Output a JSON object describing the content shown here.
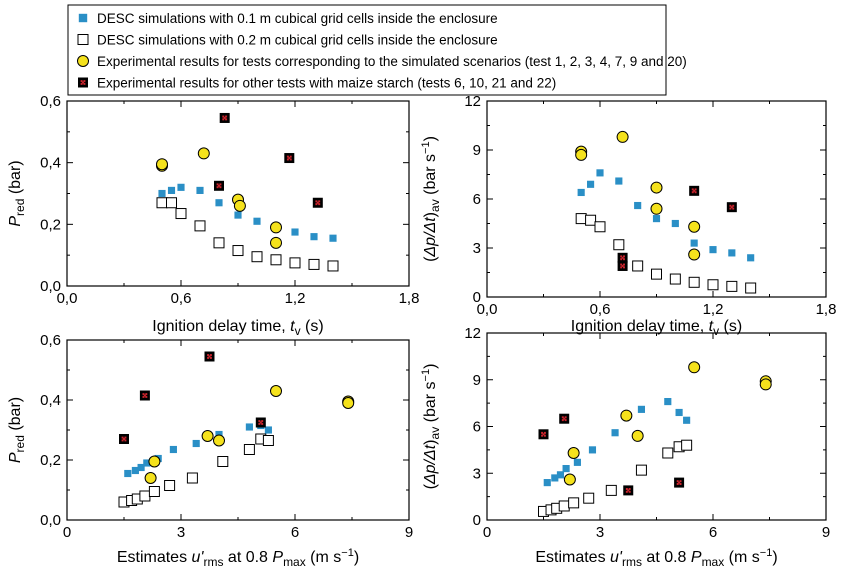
{
  "legend": [
    {
      "marker": "blue-square",
      "label": "DESC simulations with 0.1 m cubical grid cells inside the enclosure"
    },
    {
      "marker": "white-square",
      "label": "DESC simulations with 0.2 m cubical grid cells inside the enclosure"
    },
    {
      "marker": "yellow-circle",
      "label": "Experimental results for tests corresponding to the simulated scenarios (test 1, 2, 3, 4, 7, 9 and 20)"
    },
    {
      "marker": "red-square",
      "label": "Experimental results for other tests with maize starch (tests 6, 10, 21 and 22)"
    }
  ],
  "colors": {
    "blue": "#2a8fc6",
    "yellow": "#f5e21c",
    "red": "#c8232c",
    "black": "#000000",
    "white": "#ffffff"
  },
  "chart_data": [
    {
      "type": "scatter",
      "ylabel": "P_red (bar)",
      "xlabel": "Ignition delay time, t_v (s)",
      "xlim": [
        0,
        1.8
      ],
      "ylim": [
        0,
        0.6
      ],
      "xticks": [
        "0,0",
        "0,6",
        "1,2",
        "1,8"
      ],
      "yticks": [
        "0,0",
        "0,2",
        "0,4",
        "0,6"
      ],
      "series": [
        {
          "name": "DESC simulations with 0.1 m cubical grid cells inside the enclosure",
          "marker": "blue-square",
          "x": [
            0.5,
            0.55,
            0.6,
            0.7,
            0.8,
            0.9,
            1.0,
            1.1,
            1.2,
            1.3,
            1.4
          ],
          "y": [
            0.3,
            0.31,
            0.32,
            0.31,
            0.27,
            0.23,
            0.21,
            0.19,
            0.175,
            0.16,
            0.155
          ]
        },
        {
          "name": "DESC simulations with 0.2 m cubical grid cells inside the enclosure",
          "marker": "white-square",
          "x": [
            0.5,
            0.55,
            0.6,
            0.7,
            0.8,
            0.9,
            1.0,
            1.1,
            1.2,
            1.3,
            1.4
          ],
          "y": [
            0.27,
            0.27,
            0.235,
            0.195,
            0.14,
            0.115,
            0.095,
            0.085,
            0.075,
            0.07,
            0.065
          ]
        },
        {
          "name": "Experimental results for tests corresponding to the simulated scenarios (test 1, 2, 3, 4, 7, 9 and 20)",
          "marker": "yellow-circle",
          "x": [
            0.5,
            0.5,
            0.72,
            0.9,
            0.91,
            1.1,
            1.1
          ],
          "y": [
            0.39,
            0.395,
            0.43,
            0.28,
            0.26,
            0.19,
            0.14
          ]
        },
        {
          "name": "Experimental results for other tests with maize starch (tests 6, 10, 21 and 22)",
          "marker": "red-square",
          "x": [
            0.8,
            0.83,
            1.17,
            1.32
          ],
          "y": [
            0.325,
            0.545,
            0.415,
            0.27
          ]
        }
      ]
    },
    {
      "type": "scatter",
      "ylabel": "(Δp/Δt)av (bar s^-1)",
      "xlabel": "Ignition delay time, t_v (s)",
      "xlim": [
        0,
        1.8
      ],
      "ylim": [
        0,
        12
      ],
      "xticks": [
        "0,0",
        "0,6",
        "1,2",
        "1,8"
      ],
      "yticks": [
        "0",
        "3",
        "6",
        "9",
        "12"
      ],
      "series": [
        {
          "name": "DESC simulations with 0.1 m cubical grid cells inside the enclosure",
          "marker": "blue-square",
          "x": [
            0.5,
            0.55,
            0.6,
            0.7,
            0.8,
            0.9,
            1.0,
            1.1,
            1.2,
            1.3,
            1.4
          ],
          "y": [
            6.4,
            6.9,
            7.6,
            7.1,
            5.6,
            4.8,
            4.5,
            3.3,
            2.9,
            2.7,
            2.4
          ]
        },
        {
          "name": "DESC simulations with 0.2 m cubical grid cells inside the enclosure",
          "marker": "white-square",
          "x": [
            0.5,
            0.55,
            0.6,
            0.7,
            0.8,
            0.9,
            1.0,
            1.1,
            1.2,
            1.3,
            1.4
          ],
          "y": [
            4.8,
            4.7,
            4.3,
            3.2,
            1.9,
            1.4,
            1.1,
            0.9,
            0.75,
            0.65,
            0.55
          ]
        },
        {
          "name": "Experimental results for tests corresponding to the simulated scenarios (test 1, 2, 3, 4, 7, 9 and 20)",
          "marker": "yellow-circle",
          "x": [
            0.5,
            0.5,
            0.72,
            0.9,
            0.9,
            1.1,
            1.1
          ],
          "y": [
            8.9,
            8.7,
            9.8,
            6.7,
            5.4,
            4.3,
            2.6
          ]
        },
        {
          "name": "Experimental results for other tests with maize starch (tests 6, 10, 21 and 22)",
          "marker": "red-square",
          "x": [
            0.72,
            0.72,
            1.1,
            1.3
          ],
          "y": [
            2.4,
            1.9,
            6.5,
            5.5
          ]
        }
      ]
    },
    {
      "type": "scatter",
      "ylabel": "P_red (bar)",
      "xlabel": "Estimates u'rms at 0.8 P_max (m s^-1)",
      "xlim": [
        0,
        9
      ],
      "ylim": [
        0,
        0.6
      ],
      "xticks": [
        "0",
        "3",
        "6",
        "9"
      ],
      "yticks": [
        "0,0",
        "0,2",
        "0,4",
        "0,6"
      ],
      "series": [
        {
          "name": "DESC simulations with 0.1 m cubical grid cells inside the enclosure",
          "marker": "blue-square",
          "x": [
            1.6,
            1.8,
            1.95,
            2.1,
            2.4,
            2.8,
            3.4,
            4.0,
            4.8,
            5.1,
            5.3
          ],
          "y": [
            0.155,
            0.165,
            0.175,
            0.19,
            0.205,
            0.235,
            0.255,
            0.285,
            0.31,
            0.315,
            0.3
          ]
        },
        {
          "name": "DESC simulations with 0.2 m cubical grid cells inside the enclosure",
          "marker": "white-square",
          "x": [
            1.5,
            1.7,
            1.85,
            2.05,
            2.3,
            2.7,
            3.3,
            4.1,
            4.8,
            5.1,
            5.3
          ],
          "y": [
            0.06,
            0.065,
            0.07,
            0.08,
            0.095,
            0.115,
            0.14,
            0.195,
            0.235,
            0.27,
            0.265
          ]
        },
        {
          "name": "Experimental results for tests corresponding to the simulated scenarios (test 1, 2, 3, 4, 7, 9 and 20)",
          "marker": "yellow-circle",
          "x": [
            2.2,
            2.3,
            3.7,
            4.0,
            5.5,
            7.4,
            7.4
          ],
          "y": [
            0.14,
            0.195,
            0.28,
            0.265,
            0.43,
            0.395,
            0.39
          ]
        },
        {
          "name": "Experimental results for other tests with maize starch (tests 6, 10, 21 and 22)",
          "marker": "red-square",
          "x": [
            1.5,
            2.05,
            3.75,
            5.1
          ],
          "y": [
            0.27,
            0.415,
            0.545,
            0.325
          ]
        }
      ]
    },
    {
      "type": "scatter",
      "ylabel": "(Δp/Δt)av (bar s^-1)",
      "xlabel": "Estimates u'rms at 0.8 P_max (m s^-1)",
      "xlim": [
        0,
        9
      ],
      "ylim": [
        0,
        12
      ],
      "xticks": [
        "0",
        "3",
        "6",
        "9"
      ],
      "yticks": [
        "0",
        "3",
        "6",
        "9",
        "12"
      ],
      "series": [
        {
          "name": "DESC simulations with 0.1 m cubical grid cells inside the enclosure",
          "marker": "blue-square",
          "x": [
            1.6,
            1.8,
            1.95,
            2.1,
            2.4,
            2.8,
            3.4,
            4.1,
            4.8,
            5.1,
            5.3
          ],
          "y": [
            2.4,
            2.7,
            2.9,
            3.3,
            3.7,
            4.5,
            5.6,
            7.1,
            7.6,
            6.9,
            6.4
          ]
        },
        {
          "name": "DESC simulations with 0.2 m cubical grid cells inside the enclosure",
          "marker": "white-square",
          "x": [
            1.5,
            1.7,
            1.85,
            2.05,
            2.3,
            2.7,
            3.3,
            4.1,
            4.8,
            5.1,
            5.3
          ],
          "y": [
            0.55,
            0.65,
            0.75,
            0.9,
            1.1,
            1.4,
            1.9,
            3.2,
            4.3,
            4.7,
            4.8
          ]
        },
        {
          "name": "Experimental results for tests corresponding to the simulated scenarios (test 1, 2, 3, 4, 7, 9 and 20)",
          "marker": "yellow-circle",
          "x": [
            2.3,
            2.2,
            3.7,
            4.0,
            5.5,
            7.4,
            7.4
          ],
          "y": [
            4.3,
            2.6,
            6.7,
            5.4,
            9.8,
            8.9,
            8.7
          ]
        },
        {
          "name": "Experimental results for other tests with maize starch (tests 6, 10, 21 and 22)",
          "marker": "red-square",
          "x": [
            1.5,
            2.05,
            3.75,
            5.1
          ],
          "y": [
            5.5,
            6.5,
            1.9,
            2.4
          ]
        }
      ]
    }
  ]
}
